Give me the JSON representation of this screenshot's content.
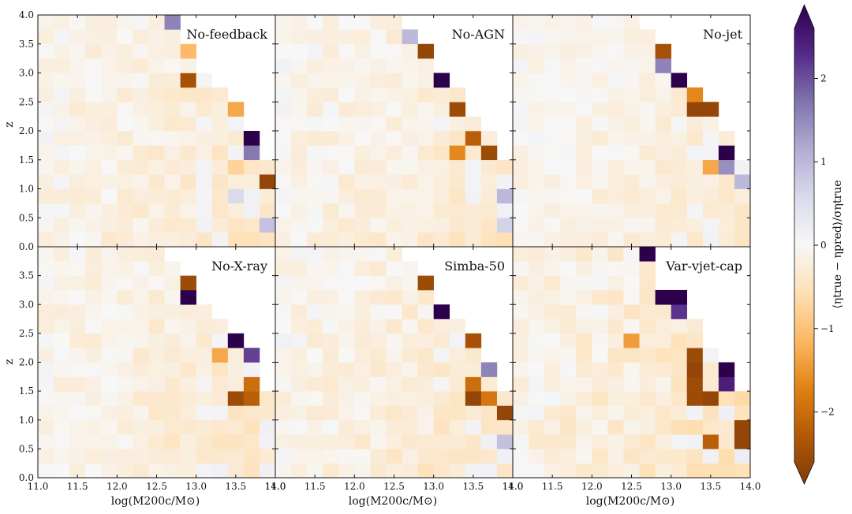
{
  "figure": {
    "shared_xlabel": "log(M200c/M⊙)",
    "shared_ylabel": "z",
    "colorbar_label": "⟨ηtrue − ηpred⟩/σηtrue"
  },
  "chart_data": [
    {
      "type": "heatmap",
      "title": "No-feedback",
      "xlim": [
        11.0,
        14.0
      ],
      "ylim": [
        0.0,
        4.0
      ],
      "xticks": [
        "11.0",
        "11.5",
        "12.0",
        "12.5",
        "13.0",
        "13.5",
        "14.0"
      ],
      "yticks": [
        "0.0",
        "0.5",
        "1.0",
        "1.5",
        "2.0",
        "2.5",
        "3.0",
        "3.5",
        "4.0"
      ],
      "xlabel": "",
      "ylabel": "z",
      "x_bin_width": 0.2,
      "y_bin_width": 0.25,
      "intensity_scale": 0.55,
      "highlight_cells": [
        {
          "x": 12.7,
          "y": 3.875,
          "v": 1.4
        },
        {
          "x": 12.9,
          "y": 2.875,
          "v": -2.2
        },
        {
          "x": 12.9,
          "y": 3.375,
          "v": -1.0
        },
        {
          "x": 13.5,
          "y": 2.375,
          "v": -1.2
        },
        {
          "x": 13.7,
          "y": 1.875,
          "v": 2.6
        },
        {
          "x": 13.7,
          "y": 1.625,
          "v": 1.5
        },
        {
          "x": 13.9,
          "y": 1.125,
          "v": -2.4
        },
        {
          "x": 13.5,
          "y": 1.375,
          "v": -0.7
        },
        {
          "x": 13.9,
          "y": 0.375,
          "v": 0.8
        },
        {
          "x": 13.5,
          "y": 0.875,
          "v": 0.5
        }
      ]
    },
    {
      "type": "heatmap",
      "title": "No-AGN",
      "xlim": [
        11.0,
        14.0
      ],
      "ylim": [
        0.0,
        4.0
      ],
      "xticks": [
        "11.0",
        "11.5",
        "12.0",
        "12.5",
        "13.0",
        "13.5",
        "14.0"
      ],
      "yticks": [],
      "xlabel": "",
      "ylabel": "",
      "x_bin_width": 0.2,
      "y_bin_width": 0.25,
      "intensity_scale": 0.55,
      "highlight_cells": [
        {
          "x": 12.7,
          "y": 3.625,
          "v": 0.9
        },
        {
          "x": 12.9,
          "y": 3.375,
          "v": -2.4
        },
        {
          "x": 13.1,
          "y": 2.875,
          "v": 2.6
        },
        {
          "x": 13.3,
          "y": 2.375,
          "v": -2.3
        },
        {
          "x": 13.3,
          "y": 1.625,
          "v": -1.5
        },
        {
          "x": 13.5,
          "y": 1.875,
          "v": -2.0
        },
        {
          "x": 13.7,
          "y": 1.625,
          "v": -2.3
        },
        {
          "x": 13.9,
          "y": 0.875,
          "v": 0.9
        },
        {
          "x": 13.9,
          "y": 0.375,
          "v": 0.6
        }
      ]
    },
    {
      "type": "heatmap",
      "title": "No-jet",
      "xlim": [
        11.0,
        14.0
      ],
      "ylim": [
        0.0,
        4.0
      ],
      "xticks": [
        "11.0",
        "11.5",
        "12.0",
        "12.5",
        "13.0",
        "13.5",
        "14.0"
      ],
      "yticks": [],
      "xlabel": "",
      "ylabel": "",
      "x_bin_width": 0.2,
      "y_bin_width": 0.25,
      "intensity_scale": 0.45,
      "highlight_cells": [
        {
          "x": 12.9,
          "y": 3.375,
          "v": -2.2
        },
        {
          "x": 12.9,
          "y": 3.125,
          "v": 1.4
        },
        {
          "x": 13.1,
          "y": 2.875,
          "v": 2.6
        },
        {
          "x": 13.3,
          "y": 2.625,
          "v": -1.5
        },
        {
          "x": 13.3,
          "y": 2.375,
          "v": -2.4
        },
        {
          "x": 13.5,
          "y": 2.375,
          "v": -2.4
        },
        {
          "x": 13.7,
          "y": 1.625,
          "v": 2.6
        },
        {
          "x": 13.7,
          "y": 1.375,
          "v": 1.3
        },
        {
          "x": 13.9,
          "y": 1.125,
          "v": 0.9
        },
        {
          "x": 13.5,
          "y": 1.375,
          "v": -1.2
        }
      ]
    },
    {
      "type": "heatmap",
      "title": "No-X-ray",
      "xlim": [
        11.0,
        14.0
      ],
      "ylim": [
        0.0,
        4.0
      ],
      "xticks": [
        "11.0",
        "11.5",
        "12.0",
        "12.5",
        "13.0",
        "13.5",
        "14.0"
      ],
      "yticks": [
        "0.0",
        "0.5",
        "1.0",
        "1.5",
        "2.0",
        "2.5",
        "3.0",
        "3.5"
      ],
      "xlabel": "log(M200c/M⊙)",
      "ylabel": "z",
      "x_bin_width": 0.2,
      "y_bin_width": 0.25,
      "intensity_scale": 0.55,
      "highlight_cells": [
        {
          "x": 12.9,
          "y": 3.375,
          "v": -2.3
        },
        {
          "x": 12.9,
          "y": 3.125,
          "v": 2.6
        },
        {
          "x": 13.5,
          "y": 2.375,
          "v": 2.6
        },
        {
          "x": 13.7,
          "y": 2.125,
          "v": 1.9
        },
        {
          "x": 13.5,
          "y": 1.375,
          "v": -2.3
        },
        {
          "x": 13.7,
          "y": 1.375,
          "v": -2.0
        },
        {
          "x": 13.7,
          "y": 1.625,
          "v": -1.8
        },
        {
          "x": 13.3,
          "y": 2.125,
          "v": -1.2
        }
      ]
    },
    {
      "type": "heatmap",
      "title": "Simba-50",
      "xlim": [
        11.0,
        14.0
      ],
      "ylim": [
        0.0,
        4.0
      ],
      "xticks": [
        "11.0",
        "11.5",
        "12.0",
        "12.5",
        "13.0",
        "13.5",
        "14.0"
      ],
      "yticks": [],
      "xlabel": "log(M200c/M⊙)",
      "ylabel": "",
      "x_bin_width": 0.2,
      "y_bin_width": 0.25,
      "intensity_scale": 0.6,
      "highlight_cells": [
        {
          "x": 12.9,
          "y": 3.375,
          "v": -2.3
        },
        {
          "x": 13.1,
          "y": 2.875,
          "v": 2.6
        },
        {
          "x": 13.5,
          "y": 2.375,
          "v": -2.2
        },
        {
          "x": 13.7,
          "y": 1.875,
          "v": 1.4
        },
        {
          "x": 13.5,
          "y": 1.375,
          "v": -2.4
        },
        {
          "x": 13.5,
          "y": 1.625,
          "v": -1.8
        },
        {
          "x": 13.7,
          "y": 1.375,
          "v": -1.7
        },
        {
          "x": 13.9,
          "y": 1.125,
          "v": -2.4
        },
        {
          "x": 13.9,
          "y": 0.625,
          "v": 0.8
        }
      ]
    },
    {
      "type": "heatmap",
      "title": "Var-vjet-cap",
      "xlim": [
        11.0,
        14.0
      ],
      "ylim": [
        0.0,
        4.0
      ],
      "xticks": [
        "11.0",
        "11.5",
        "12.0",
        "12.5",
        "13.0",
        "13.5",
        "14.0"
      ],
      "yticks": [],
      "xlabel": "log(M200c/M⊙)",
      "ylabel": "",
      "x_bin_width": 0.2,
      "y_bin_width": 0.25,
      "intensity_scale": 0.7,
      "highlight_cells": [
        {
          "x": 12.7,
          "y": 3.875,
          "v": 2.6
        },
        {
          "x": 12.9,
          "y": 3.125,
          "v": 2.6
        },
        {
          "x": 13.1,
          "y": 3.125,
          "v": 2.6
        },
        {
          "x": 13.1,
          "y": 2.875,
          "v": 2.0
        },
        {
          "x": 13.3,
          "y": 2.125,
          "v": -2.3
        },
        {
          "x": 13.3,
          "y": 1.875,
          "v": -2.4
        },
        {
          "x": 13.3,
          "y": 1.625,
          "v": -2.3
        },
        {
          "x": 13.3,
          "y": 1.375,
          "v": -2.3
        },
        {
          "x": 13.5,
          "y": 1.375,
          "v": -2.4
        },
        {
          "x": 13.7,
          "y": 1.875,
          "v": 2.6
        },
        {
          "x": 13.7,
          "y": 1.625,
          "v": 2.2
        },
        {
          "x": 13.9,
          "y": 0.875,
          "v": -2.4
        },
        {
          "x": 13.9,
          "y": 0.625,
          "v": -2.4
        },
        {
          "x": 13.5,
          "y": 0.625,
          "v": -2.0
        },
        {
          "x": 12.5,
          "y": 2.375,
          "v": -1.3
        }
      ]
    }
  ],
  "colorbar": {
    "vmin": -2.6,
    "vmax": 2.6,
    "ticks": [
      -2,
      -1,
      0,
      1,
      2
    ],
    "tick_labels": [
      "−2",
      "−1",
      "0",
      "1",
      "2"
    ],
    "colormap": "PuOr (brown → white → purple)",
    "stops": [
      "#7f3b08",
      "#b35806",
      "#e08214",
      "#fdb863",
      "#fee0b6",
      "#f7f7f7",
      "#d8daeb",
      "#b2abd2",
      "#8073ac",
      "#542788",
      "#2d004b"
    ]
  }
}
